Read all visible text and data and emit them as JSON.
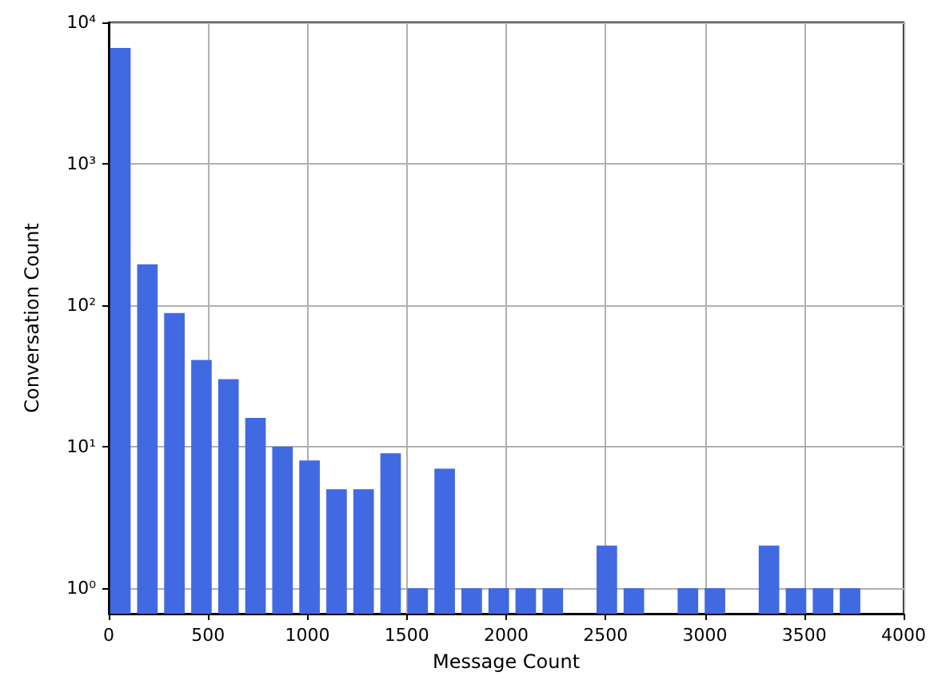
{
  "chart_data": {
    "type": "histogram",
    "xlabel": "Message Count",
    "ylabel": "Conversation Count",
    "color": "#4169e1",
    "bins": [
      0,
      136,
      272,
      408,
      544,
      680,
      816,
      952,
      1088,
      1224,
      1360,
      1496,
      1632,
      1768,
      1904,
      2040,
      2176,
      2312,
      2448,
      2584,
      2720,
      2856,
      2992,
      3128,
      3264,
      3400,
      3536,
      3672,
      3808
    ],
    "values": [
      6600,
      195,
      88,
      41,
      30,
      16,
      10,
      8,
      5,
      5,
      9,
      1,
      7,
      1,
      1,
      1,
      1,
      null,
      2,
      1,
      null,
      1,
      1,
      null,
      2,
      1,
      1,
      1
    ],
    "xlim": [
      0,
      4000
    ],
    "xticks": [
      0,
      500,
      1000,
      1500,
      2000,
      2500,
      3000,
      3500,
      4000
    ],
    "ylim": [
      0.66,
      10000
    ],
    "yticks": [
      {
        "value": 1,
        "label": "10⁰"
      },
      {
        "value": 10,
        "label": "10¹"
      },
      {
        "value": 100,
        "label": "10²"
      },
      {
        "value": 1000,
        "label": "10³"
      },
      {
        "value": 10000,
        "label": "10⁴"
      }
    ],
    "log": "y",
    "grid": true
  }
}
